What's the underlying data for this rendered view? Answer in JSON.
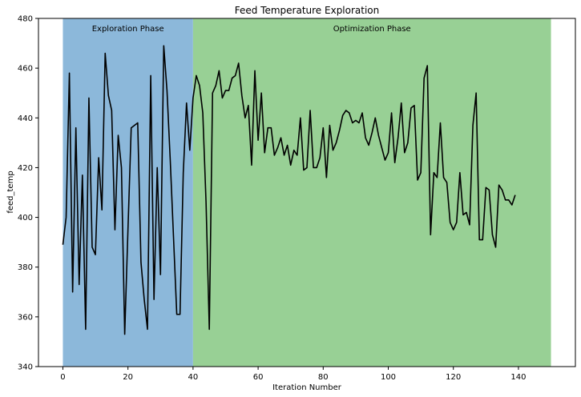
{
  "chart_data": {
    "type": "line",
    "title": "Feed Temperature Exploration",
    "xlabel": "Iteration Number",
    "ylabel": "feed_temp",
    "xlim": [
      -7.5,
      157.5
    ],
    "ylim": [
      340,
      480
    ],
    "xticks": [
      0,
      20,
      40,
      60,
      80,
      100,
      120,
      140
    ],
    "yticks": [
      340,
      360,
      380,
      400,
      420,
      440,
      460,
      480
    ],
    "grid": false,
    "regions": [
      {
        "label": "Exploration Phase",
        "x_start": 0,
        "x_end": 40,
        "color": "#8cb8da"
      },
      {
        "label": "Optimization Phase",
        "x_start": 40,
        "x_end": 150,
        "color": "#98d095"
      }
    ],
    "series": [
      {
        "color": "#000000",
        "x": [
          0,
          1,
          2,
          3,
          4,
          5,
          6,
          7,
          8,
          9,
          10,
          11,
          12,
          13,
          14,
          15,
          16,
          17,
          18,
          19,
          20,
          21,
          22,
          23,
          24,
          25,
          26,
          27,
          28,
          29,
          30,
          31,
          32,
          33,
          34,
          35,
          36,
          37,
          38,
          39,
          40,
          41,
          42,
          43,
          44,
          45,
          46,
          47,
          48,
          49,
          50,
          51,
          52,
          53,
          54,
          55,
          56,
          57,
          58,
          59,
          60,
          61,
          62,
          63,
          64,
          65,
          66,
          67,
          68,
          69,
          70,
          71,
          72,
          73,
          74,
          75,
          76,
          77,
          78,
          79,
          80,
          81,
          82,
          83,
          84,
          85,
          86,
          87,
          88,
          89,
          90,
          91,
          92,
          93,
          94,
          95,
          96,
          97,
          98,
          99,
          100,
          101,
          102,
          103,
          104,
          105,
          106,
          107,
          108,
          109,
          110,
          111,
          112,
          113,
          114,
          115,
          116,
          117,
          118,
          119,
          120,
          121,
          122,
          123,
          124,
          125,
          126,
          127,
          128,
          129,
          130,
          131,
          132,
          133,
          134,
          135,
          136,
          137,
          138,
          139
        ],
        "y": [
          389,
          400,
          458,
          370,
          436,
          373,
          417,
          355,
          448,
          388,
          385,
          424,
          403,
          466,
          449,
          443,
          395,
          433,
          420,
          353,
          395,
          436,
          437,
          438,
          382,
          367,
          355,
          457,
          367,
          420,
          377,
          469,
          451,
          423,
          392,
          361,
          361,
          418,
          446,
          427,
          448,
          457,
          453,
          442,
          406,
          355,
          450,
          453,
          459,
          448,
          451,
          451,
          456,
          457,
          462,
          449,
          440,
          445,
          421,
          459,
          431,
          450,
          426,
          436,
          436,
          425,
          428,
          432,
          425,
          429,
          421,
          427,
          425,
          440,
          419,
          420,
          443,
          420,
          420,
          424,
          436,
          416,
          437,
          427,
          430,
          435,
          441,
          443,
          442,
          438,
          439,
          438,
          442,
          432,
          429,
          434,
          440,
          433,
          428,
          423,
          426,
          442,
          422,
          432,
          446,
          426,
          430,
          444,
          445,
          415,
          418,
          456,
          461,
          393,
          418,
          416,
          438,
          416,
          414,
          398,
          395,
          398,
          418,
          401,
          402,
          397,
          437,
          450,
          391,
          391,
          412,
          411,
          393,
          388,
          413,
          411,
          407,
          407,
          405,
          409
        ]
      }
    ]
  }
}
